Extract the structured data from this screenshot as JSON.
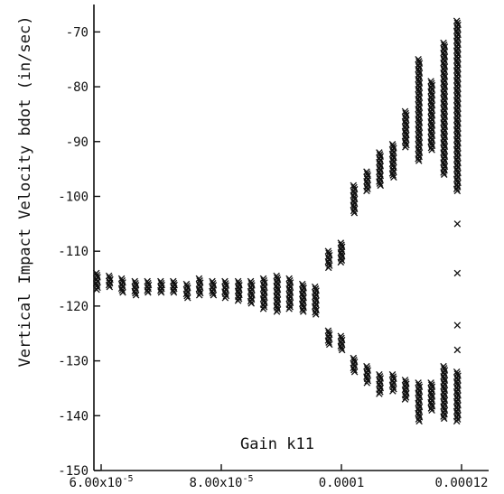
{
  "chart_data": {
    "type": "scatter",
    "marker": "x",
    "marker_color": "#111111",
    "title": "",
    "xlabel": "Gain k11",
    "ylabel": "Vertical Impact Velocity bdot (in/sec)",
    "xlim": [
      5.8e-05,
      0.000123
    ],
    "ylim": [
      -150,
      -65
    ],
    "grid": false,
    "legend": "none",
    "x_ticks": [
      {
        "value": 6e-05,
        "label": "6.00x10"
      },
      {
        "value": 8e-05,
        "label": "8.00x10"
      },
      {
        "value": 0.0001,
        "label": "0.0001"
      },
      {
        "value": 0.00012,
        "label": "0.00012"
      }
    ],
    "x_tick_exponent": "-5",
    "y_ticks": [
      {
        "value": -70,
        "label": "-70"
      },
      {
        "value": -80,
        "label": "-80"
      },
      {
        "value": -90,
        "label": "-90"
      },
      {
        "value": -100,
        "label": "-100"
      },
      {
        "value": -110,
        "label": "-110"
      },
      {
        "value": -120,
        "label": "-120"
      },
      {
        "value": -130,
        "label": "-130"
      },
      {
        "value": -140,
        "label": "-140"
      },
      {
        "value": -150,
        "label": "-150"
      }
    ],
    "point_groups": [
      {
        "x": 5.93e-05,
        "y_min": -117,
        "y_max": -114
      },
      {
        "x": 6.14e-05,
        "y_min": -116.5,
        "y_max": -114.5
      },
      {
        "x": 6.35e-05,
        "y_min": -117.5,
        "y_max": -115
      },
      {
        "x": 6.57e-05,
        "y_min": -118,
        "y_max": -115.5
      },
      {
        "x": 6.78e-05,
        "y_min": -117.5,
        "y_max": -115.5
      },
      {
        "x": 7e-05,
        "y_min": -117.5,
        "y_max": -115.5
      },
      {
        "x": 7.21e-05,
        "y_min": -117.5,
        "y_max": -115.5
      },
      {
        "x": 7.43e-05,
        "y_min": -118.5,
        "y_max": -116
      },
      {
        "x": 7.64e-05,
        "y_min": -118,
        "y_max": -115
      },
      {
        "x": 7.86e-05,
        "y_min": -118,
        "y_max": -115.5
      },
      {
        "x": 8.07e-05,
        "y_min": -118.5,
        "y_max": -115.5
      },
      {
        "x": 8.29e-05,
        "y_min": -119,
        "y_max": -115.5
      },
      {
        "x": 8.5e-05,
        "y_min": -119.5,
        "y_max": -115.5
      },
      {
        "x": 8.71e-05,
        "y_min": -120.5,
        "y_max": -115
      },
      {
        "x": 8.93e-05,
        "y_min": -121,
        "y_max": -114.5
      },
      {
        "x": 9.14e-05,
        "y_min": -120.5,
        "y_max": -115
      },
      {
        "x": 9.36e-05,
        "y_min": -121,
        "y_max": -116
      },
      {
        "x": 9.57e-05,
        "y_min": -121.5,
        "y_max": -116.5
      },
      {
        "x": 9.79e-05,
        "y_min": -113,
        "y_max": -110
      },
      {
        "x": 9.79e-05,
        "y_min": -127,
        "y_max": -124.5
      },
      {
        "x": 0.0001,
        "y_min": -112,
        "y_max": -108.5
      },
      {
        "x": 0.0001,
        "y_min": -128,
        "y_max": -125.5
      },
      {
        "x": 0.0001021,
        "y_min": -103,
        "y_max": -98
      },
      {
        "x": 0.0001021,
        "y_min": -132,
        "y_max": -129.5
      },
      {
        "x": 0.0001043,
        "y_min": -99,
        "y_max": -95.5
      },
      {
        "x": 0.0001043,
        "y_min": -134,
        "y_max": -131
      },
      {
        "x": 0.0001064,
        "y_min": -98,
        "y_max": -92
      },
      {
        "x": 0.0001064,
        "y_min": -136,
        "y_max": -132.5
      },
      {
        "x": 0.0001086,
        "y_min": -96.5,
        "y_max": -90.5
      },
      {
        "x": 0.0001086,
        "y_min": -135.5,
        "y_max": -132.5
      },
      {
        "x": 0.0001107,
        "y_min": -91,
        "y_max": -84.5
      },
      {
        "x": 0.0001107,
        "y_min": -137,
        "y_max": -133.5
      },
      {
        "x": 0.0001129,
        "y_min": -93.5,
        "y_max": -75
      },
      {
        "x": 0.0001129,
        "y_min": -141,
        "y_max": -134
      },
      {
        "x": 0.000115,
        "y_min": -91.5,
        "y_max": -79
      },
      {
        "x": 0.000115,
        "y_min": -139,
        "y_max": -134
      },
      {
        "x": 0.0001171,
        "y_min": -96,
        "y_max": -72
      },
      {
        "x": 0.0001171,
        "y_min": -140.5,
        "y_max": -131
      },
      {
        "x": 0.0001193,
        "y_min": -99,
        "y_max": -68
      },
      {
        "x": 0.0001193,
        "y_min": -141,
        "y_max": -132
      }
    ],
    "outlier_points": [
      {
        "x": 0.0001193,
        "y": -105
      },
      {
        "x": 0.0001193,
        "y": -114
      },
      {
        "x": 0.0001193,
        "y": -123.5
      },
      {
        "x": 0.0001193,
        "y": -128
      }
    ]
  }
}
